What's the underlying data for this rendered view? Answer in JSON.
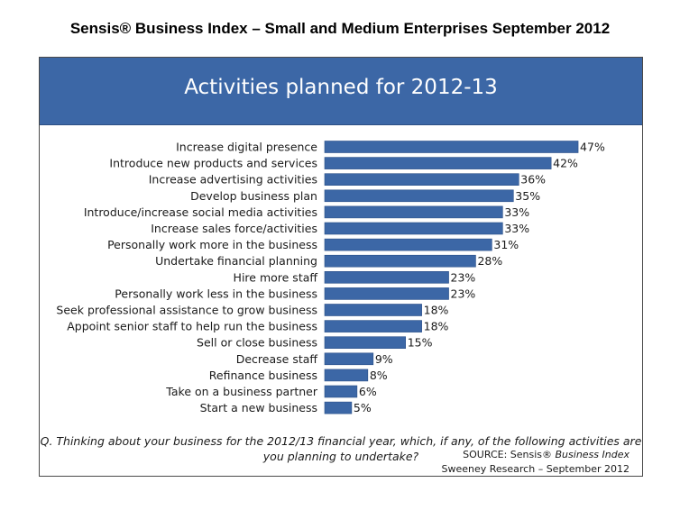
{
  "page": {
    "title": "Sensis® Business Index – Small and Medium Enterprises September 2012"
  },
  "footer": {
    "question_line1": "Q. Thinking about your business for the 2012/13 financial year, which, if any, of the following activities are",
    "question_line2": "you planning to undertake?",
    "source_prefix": "SOURCE: Sensis® ",
    "source_name": "Business Index",
    "credit": "Sweeney Research – September 2012"
  },
  "colors": {
    "bar": "#3c67a6",
    "header": "#3c67a6"
  },
  "chart_data": {
    "type": "bar",
    "orientation": "horizontal",
    "title": "Activities planned for 2012-13",
    "xlabel": "",
    "ylabel": "",
    "value_suffix": "%",
    "xlim": [
      0,
      50
    ],
    "grid": false,
    "legend": "none",
    "categories": [
      "Increase digital presence",
      "Introduce new products and services",
      "Increase advertising activities",
      "Develop business plan",
      "Introduce/increase social media activities",
      "Increase sales force/activities",
      "Personally work more in the business",
      "Undertake financial planning",
      "Hire more staff",
      "Personally work less in the business",
      "Seek professional assistance to grow business",
      "Appoint senior staff to help run the business",
      "Sell or close business",
      "Decrease staff",
      "Refinance business",
      "Take on a business partner",
      "Start a new business"
    ],
    "values": [
      47,
      42,
      36,
      35,
      33,
      33,
      31,
      28,
      23,
      23,
      18,
      18,
      15,
      9,
      8,
      6,
      5
    ],
    "value_labels": [
      "47%",
      "42%",
      "36%",
      "35%",
      "33%",
      "33%",
      "31%",
      "28%",
      "23%",
      "23%",
      "18%",
      "18%",
      "15%",
      "9%",
      "8%",
      "6%",
      "5%"
    ]
  }
}
